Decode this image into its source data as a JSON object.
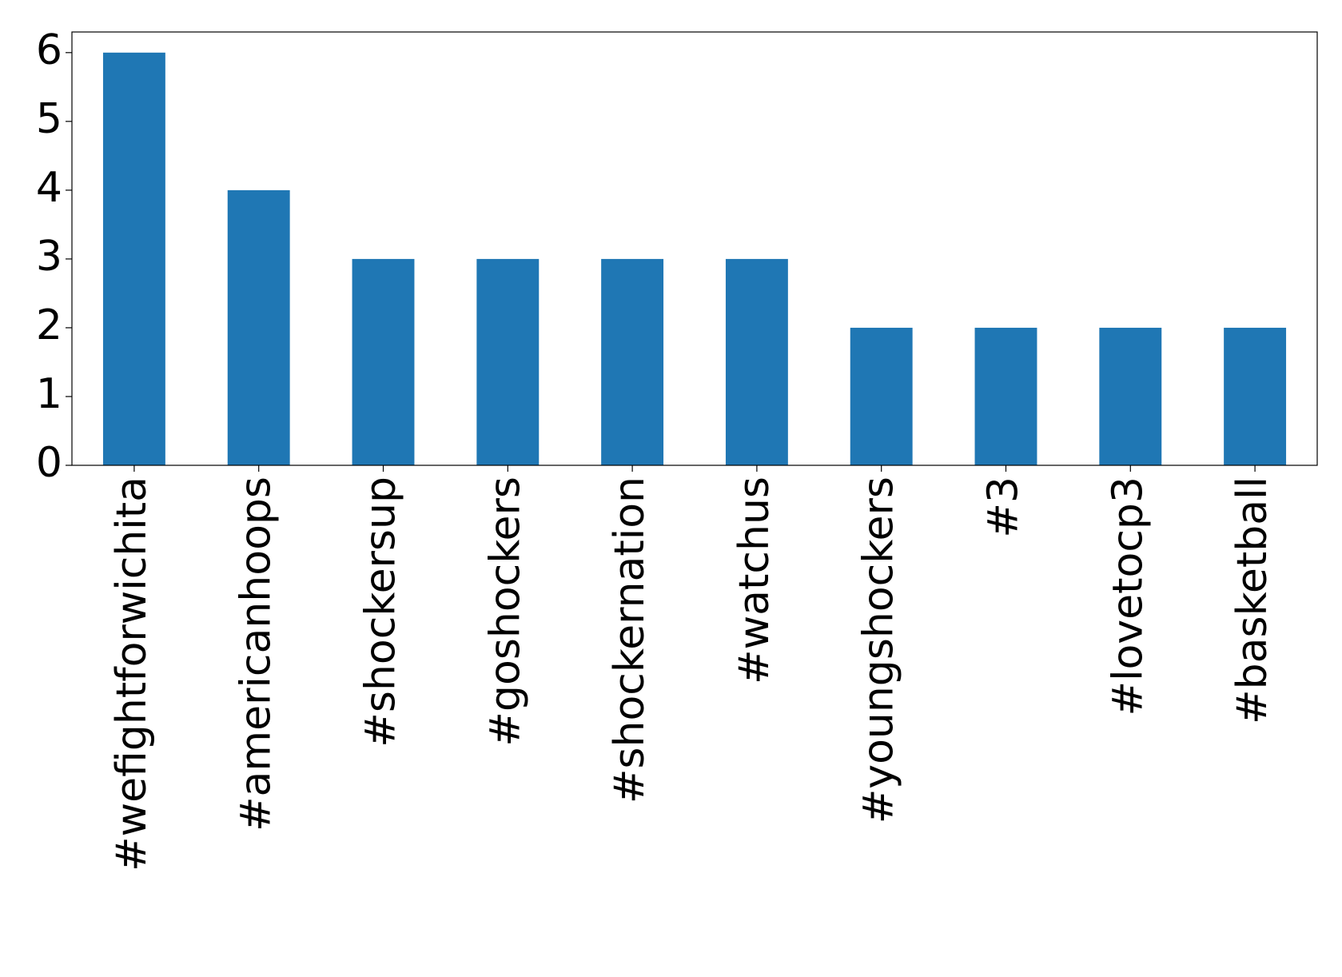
{
  "chart_data": {
    "type": "bar",
    "categories": [
      "#wefightforwichita",
      "#americanhoops",
      "#shockersup",
      "#goshockers",
      "#shockernation",
      "#watchus",
      "#youngshockers",
      "#3",
      "#lovetocp3",
      "#basketball"
    ],
    "values": [
      6,
      4,
      3,
      3,
      3,
      3,
      2,
      2,
      2,
      2
    ],
    "color": "#1f77b4",
    "ylim": [
      0,
      6.3
    ],
    "yticks": [
      0,
      1,
      2,
      3,
      4,
      5,
      6
    ],
    "grid": false
  }
}
